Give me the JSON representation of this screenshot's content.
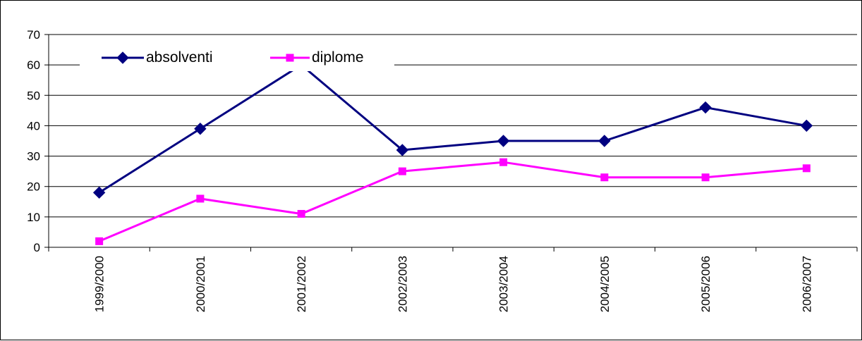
{
  "chart_data": {
    "type": "line",
    "categories": [
      "1999/2000",
      "2000/2001",
      "2001/2002",
      "2002/2003",
      "2003/2004",
      "2004/2005",
      "2005/2006",
      "2006/2007"
    ],
    "series": [
      {
        "name": "absolventi",
        "values": [
          18,
          39,
          60,
          32,
          35,
          35,
          46,
          40
        ],
        "color": "#000080",
        "marker": "diamond"
      },
      {
        "name": "diplome",
        "values": [
          2,
          16,
          11,
          25,
          28,
          23,
          23,
          26
        ],
        "color": "#FF00FF",
        "marker": "square"
      }
    ],
    "ylim": [
      0,
      70
    ],
    "yticks": [
      0,
      10,
      20,
      30,
      40,
      50,
      60,
      70
    ],
    "ytick_labels": [
      "0",
      "10",
      "20",
      "30",
      "40",
      "50",
      "60",
      "70"
    ],
    "grid": true,
    "legend_position": "top-left",
    "title": "",
    "xlabel": "",
    "ylabel": ""
  }
}
